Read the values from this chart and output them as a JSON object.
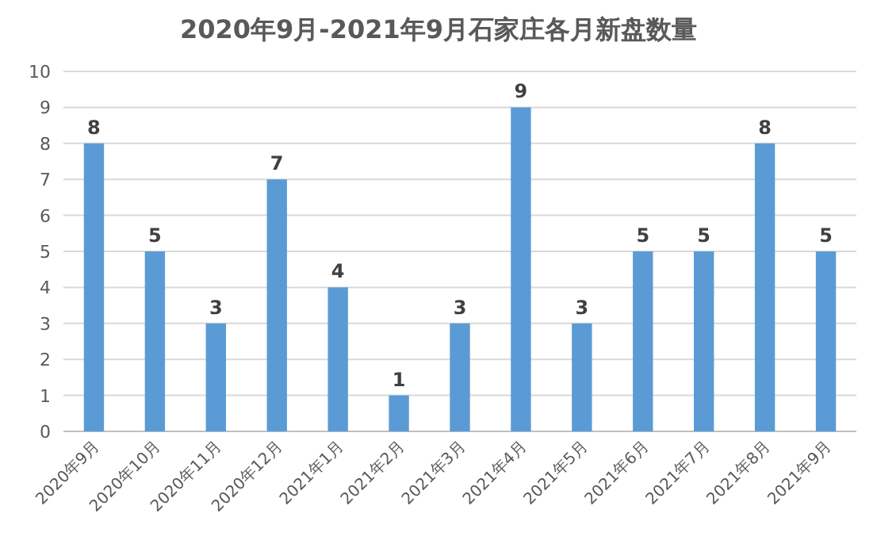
{
  "chart_data": {
    "type": "bar",
    "title": "2020年9月-2021年9月石家庄各月新盘数量",
    "categories": [
      "2020年9月",
      "2020年10月",
      "2020年11月",
      "2020年12月",
      "2021年1月",
      "2021年2月",
      "2021年3月",
      "2021年4月",
      "2021年5月",
      "2021年6月",
      "2021年7月",
      "2021年8月",
      "2021年9月"
    ],
    "values": [
      8,
      5,
      3,
      7,
      4,
      1,
      3,
      9,
      3,
      5,
      5,
      8,
      5
    ],
    "color": "#5b9bd5",
    "ylim": [
      0,
      10
    ],
    "yticks": [
      0,
      1,
      2,
      3,
      4,
      5,
      6,
      7,
      8,
      9,
      10
    ],
    "grid": "y",
    "data_labels": true
  }
}
